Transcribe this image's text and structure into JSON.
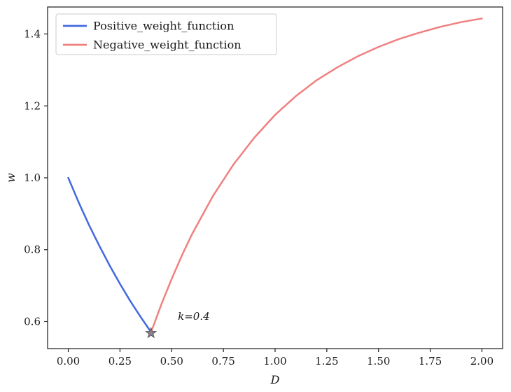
{
  "figure": {
    "background": "#ffffff"
  },
  "chart_data": {
    "type": "line",
    "title": "",
    "xlabel": "D",
    "ylabel": "w",
    "xlim": [
      -0.1,
      2.1
    ],
    "ylim": [
      0.525,
      1.475
    ],
    "xticks": [
      0.0,
      0.25,
      0.5,
      0.75,
      1.0,
      1.25,
      1.5,
      1.75,
      2.0
    ],
    "xtick_labels": [
      "0.00",
      "0.25",
      "0.50",
      "0.75",
      "1.00",
      "1.25",
      "1.50",
      "1.75",
      "2.00"
    ],
    "yticks": [
      0.6,
      0.8,
      1.0,
      1.2,
      1.4
    ],
    "ytick_labels": [
      "0.6",
      "0.8",
      "1.0",
      "1.2",
      "1.4"
    ],
    "grid": false,
    "legend_position": "upper left",
    "series": [
      {
        "name": "Positive_weight_function",
        "color": "#4169e1",
        "x": [
          0.0,
          0.05,
          0.1,
          0.15,
          0.2,
          0.25,
          0.3,
          0.35,
          0.4
        ],
        "y": [
          1.0,
          0.932,
          0.869,
          0.811,
          0.756,
          0.705,
          0.657,
          0.613,
          0.571
        ]
      },
      {
        "name": "Negative_weight_function",
        "color": "#f08080",
        "x": [
          0.4,
          0.45,
          0.5,
          0.55,
          0.6,
          0.7,
          0.8,
          0.9,
          1.0,
          1.1,
          1.2,
          1.3,
          1.4,
          1.5,
          1.6,
          1.7,
          1.8,
          1.9,
          2.0
        ],
        "y": [
          0.57,
          0.648,
          0.719,
          0.785,
          0.845,
          0.95,
          1.038,
          1.112,
          1.175,
          1.227,
          1.271,
          1.307,
          1.338,
          1.364,
          1.386,
          1.404,
          1.42,
          1.433,
          1.443
        ]
      }
    ],
    "marker": {
      "x": 0.4,
      "y": 0.568,
      "symbol": "star",
      "color": "#8b8589",
      "edge_color": "#5a5560"
    },
    "annotation": {
      "text": "k=0.4",
      "x": 0.53,
      "y": 0.605
    },
    "axis_color": "#1a1a1a"
  }
}
